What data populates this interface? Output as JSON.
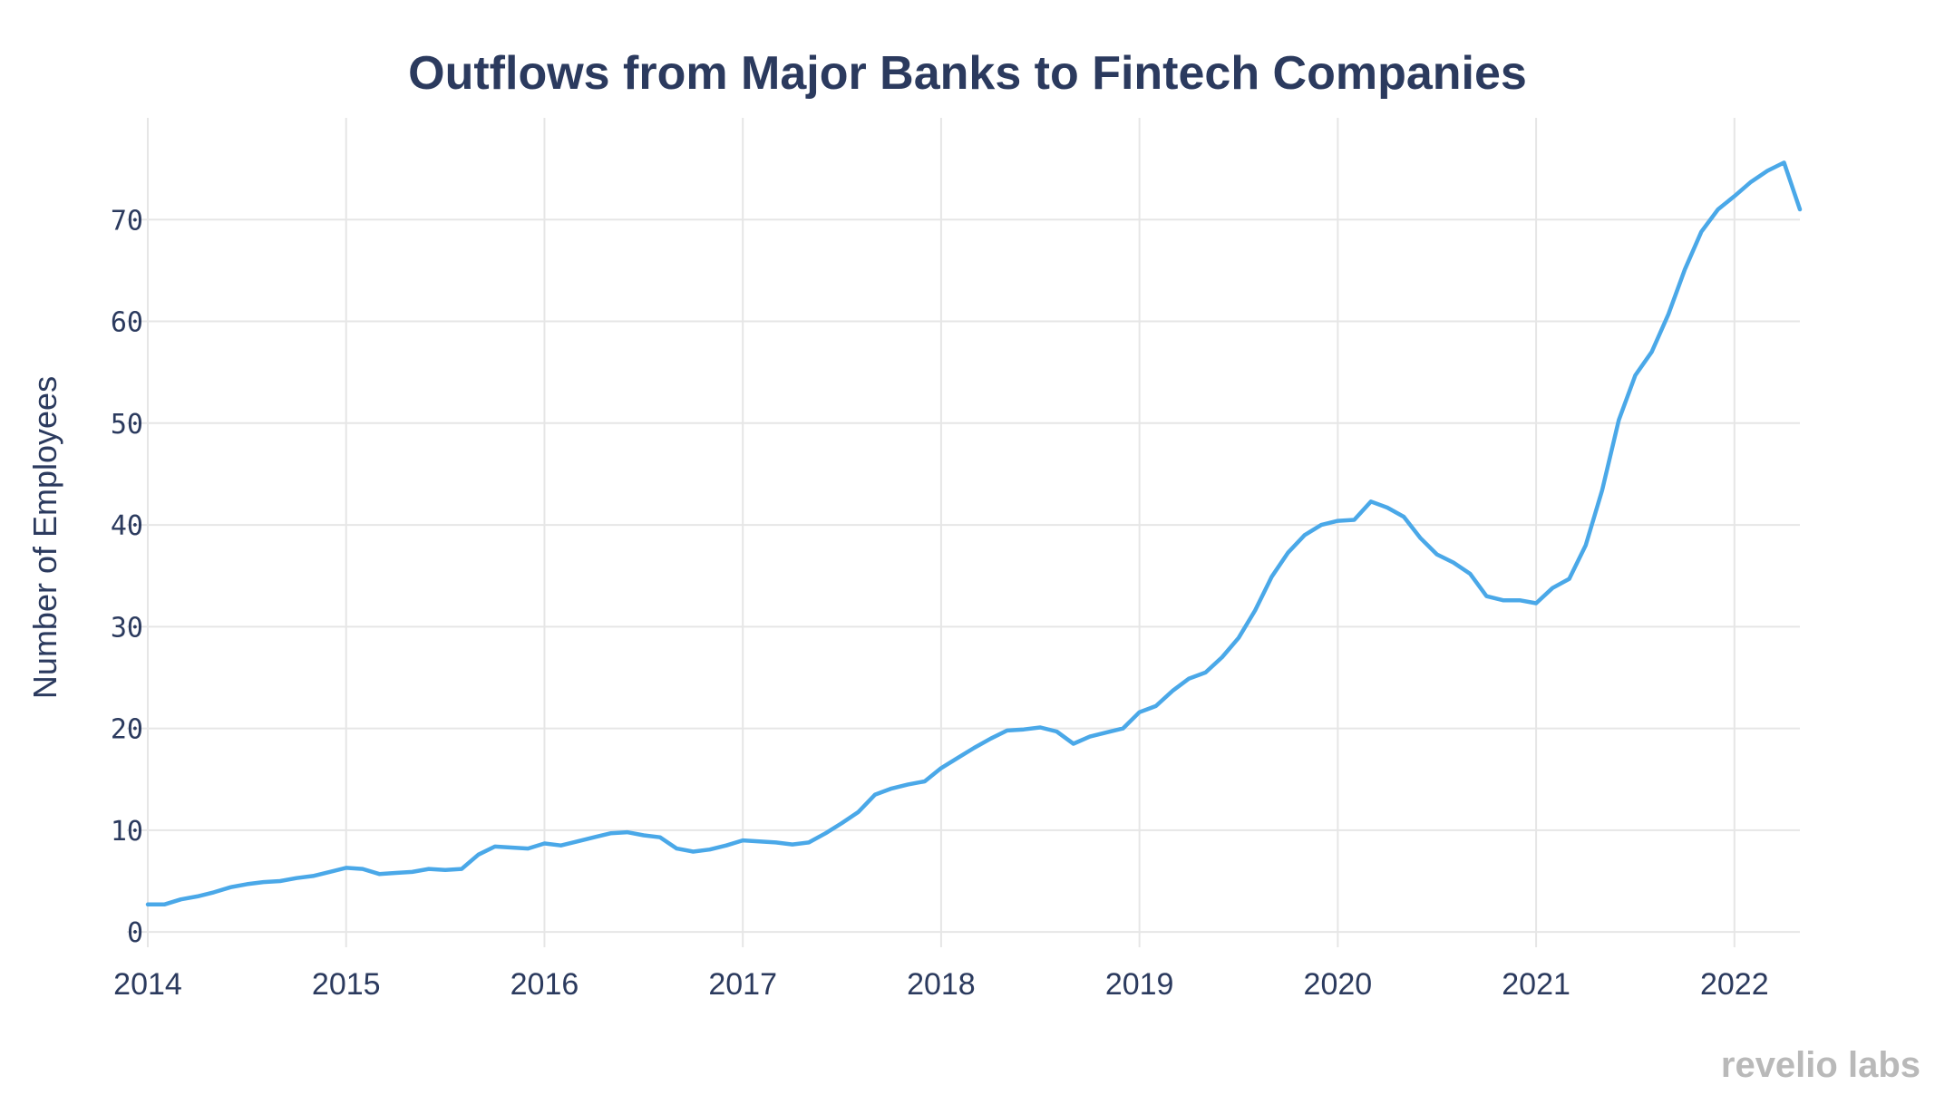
{
  "chart_data": {
    "type": "line",
    "title": "Outflows from Major Banks to Fintech Companies",
    "xlabel": "",
    "ylabel": "Number of Employees",
    "x_ticks": [
      "2014",
      "2015",
      "2016",
      "2017",
      "2018",
      "2019",
      "2020",
      "2021",
      "2022"
    ],
    "x_range": [
      2014.0,
      2022.33
    ],
    "y_ticks": [
      0,
      10,
      20,
      30,
      40,
      50,
      60,
      70
    ],
    "ylim": [
      -1.5,
      80
    ],
    "grid": true,
    "legend": "none",
    "color": "#4aa8e8",
    "series": [
      {
        "x": [
          2014.0,
          2014.083,
          2014.167,
          2014.25,
          2014.333,
          2014.417,
          2014.5,
          2014.583,
          2014.667,
          2014.75,
          2014.833,
          2014.917,
          2015.0,
          2015.083,
          2015.167,
          2015.25,
          2015.333,
          2015.417,
          2015.5,
          2015.583,
          2015.667,
          2015.75,
          2015.833,
          2015.917,
          2016.0,
          2016.083,
          2016.167,
          2016.25,
          2016.333,
          2016.417,
          2016.5,
          2016.583,
          2016.667,
          2016.75,
          2016.833,
          2016.917,
          2017.0,
          2017.083,
          2017.167,
          2017.25,
          2017.333,
          2017.417,
          2017.5,
          2017.583,
          2017.667,
          2017.75,
          2017.833,
          2017.917,
          2018.0,
          2018.083,
          2018.167,
          2018.25,
          2018.333,
          2018.417,
          2018.5,
          2018.583,
          2018.667,
          2018.75,
          2018.833,
          2018.917,
          2019.0,
          2019.083,
          2019.167,
          2019.25,
          2019.333,
          2019.417,
          2019.5,
          2019.583,
          2019.667,
          2019.75,
          2019.833,
          2019.917,
          2020.0,
          2020.083,
          2020.167,
          2020.25,
          2020.333,
          2020.417,
          2020.5,
          2020.583,
          2020.667,
          2020.75,
          2020.833,
          2020.917,
          2021.0,
          2021.083,
          2021.167,
          2021.25,
          2021.333,
          2021.417,
          2021.5,
          2021.583,
          2021.667,
          2021.75,
          2021.833,
          2021.917,
          2022.0,
          2022.083,
          2022.167,
          2022.25,
          2022.33
        ],
        "y": [
          2.7,
          2.7,
          3.2,
          3.5,
          3.9,
          4.4,
          4.7,
          4.9,
          5.0,
          5.3,
          5.5,
          5.9,
          6.3,
          6.2,
          5.7,
          5.8,
          5.9,
          6.2,
          6.1,
          6.2,
          7.6,
          8.4,
          8.3,
          8.2,
          8.7,
          8.5,
          8.9,
          9.3,
          9.7,
          9.8,
          9.5,
          9.3,
          8.2,
          7.9,
          8.1,
          8.5,
          9.0,
          8.9,
          8.8,
          8.6,
          8.8,
          9.7,
          10.7,
          11.8,
          13.5,
          14.1,
          14.5,
          14.8,
          16.1,
          17.1,
          18.1,
          19.0,
          19.8,
          19.9,
          20.1,
          19.7,
          18.5,
          19.2,
          19.6,
          20.0,
          21.6,
          22.2,
          23.7,
          24.9,
          25.5,
          27.0,
          28.9,
          31.6,
          34.9,
          37.3,
          39.0,
          40.0,
          40.4,
          40.5,
          42.3,
          41.7,
          40.8,
          38.7,
          37.1,
          36.3,
          35.2,
          33.0,
          32.6,
          32.6,
          32.3,
          33.8,
          34.7,
          38.0,
          43.4,
          50.3,
          54.7,
          57.0,
          60.7,
          65.1,
          68.8,
          71.0,
          72.3,
          73.7,
          74.8,
          75.6,
          71.0
        ]
      }
    ]
  },
  "watermark": "revelio labs"
}
